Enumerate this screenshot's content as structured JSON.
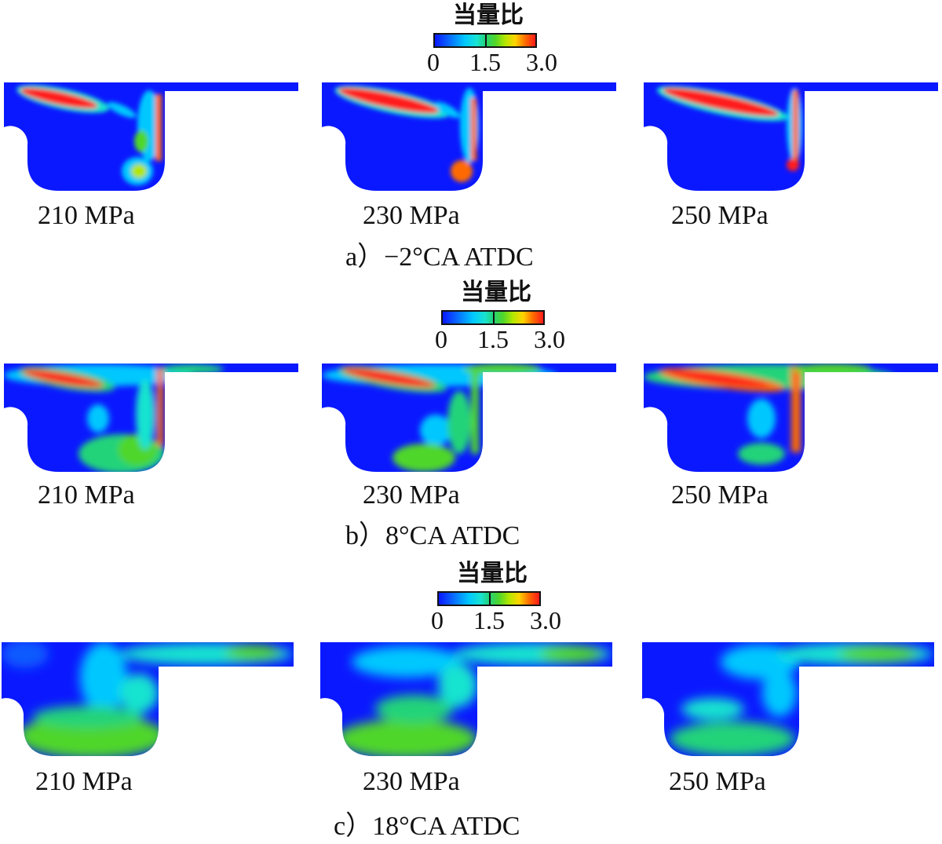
{
  "legend": {
    "title": "当量比",
    "ticks": [
      "0",
      "1.5",
      "3.0"
    ]
  },
  "colors": {
    "low": "#0a18ff",
    "mid": "#22d37a",
    "high": "#ff1a1a"
  },
  "rows": [
    {
      "caption": "a）−2°CA  ATDC",
      "panels": [
        {
          "label": "210 MPa"
        },
        {
          "label": "230 MPa"
        },
        {
          "label": "250 MPa"
        }
      ]
    },
    {
      "caption": "b）8°CA  ATDC",
      "panels": [
        {
          "label": "210 MPa"
        },
        {
          "label": "230 MPa"
        },
        {
          "label": "250 MPa"
        }
      ]
    },
    {
      "caption": "c）18°CA  ATDC",
      "panels": [
        {
          "label": "210 MPa"
        },
        {
          "label": "230 MPa"
        },
        {
          "label": "250 MPa"
        }
      ]
    }
  ]
}
